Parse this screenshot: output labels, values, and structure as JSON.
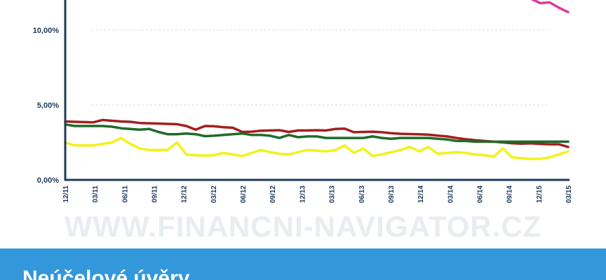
{
  "watermark": "WWW.FINANCNI-NAVIGATOR.CZ",
  "banner_title": "Neúčelové úvěry",
  "colors": {
    "axis": "#1f3a5a",
    "grid": "#d9dde2",
    "banner": "#3397db",
    "magenta": "#e0379b",
    "red": "#a51e1e",
    "green": "#1e6b2a",
    "yellow": "#f2f21a"
  },
  "chart_data": {
    "type": "line",
    "title": "",
    "xlabel": "",
    "ylabel": "",
    "ylim": [
      0,
      12
    ],
    "y_ticks": [
      "0,00%",
      "5,00%",
      "10,00%"
    ],
    "y_tick_values": [
      0,
      5,
      10
    ],
    "grid": true,
    "x_tick_labels": [
      "12/11",
      "03/11",
      "06/11",
      "09/11",
      "12/12",
      "03/12",
      "06/12",
      "09/12",
      "12/13",
      "03/13",
      "06/13",
      "09/13",
      "12/14",
      "03/14",
      "06/14",
      "09/14",
      "12/15",
      "03/15"
    ],
    "series": [
      {
        "color": "#e0379b",
        "values": [
          null,
          null,
          null,
          null,
          null,
          null,
          null,
          null,
          null,
          null,
          null,
          null,
          null,
          null,
          null,
          null,
          null,
          null,
          null,
          null,
          null,
          null,
          null,
          null,
          null,
          null,
          null,
          null,
          null,
          null,
          null,
          null,
          null,
          null,
          null,
          null,
          null,
          null,
          null,
          null,
          null,
          null,
          null,
          null,
          null,
          null,
          null,
          null,
          null,
          null,
          12.1,
          11.8,
          11.85,
          11.5,
          11.2
        ]
      },
      {
        "color": "#a51e1e",
        "values": [
          3.9,
          3.88,
          3.86,
          3.84,
          4.0,
          3.95,
          3.9,
          3.88,
          3.8,
          3.78,
          3.76,
          3.74,
          3.72,
          3.6,
          3.35,
          3.6,
          3.58,
          3.52,
          3.48,
          3.2,
          3.22,
          3.28,
          3.3,
          3.32,
          3.2,
          3.3,
          3.3,
          3.32,
          3.3,
          3.4,
          3.42,
          3.18,
          3.2,
          3.22,
          3.18,
          3.12,
          3.08,
          3.06,
          3.04,
          3.02,
          2.96,
          2.9,
          2.8,
          2.72,
          2.65,
          2.6,
          2.55,
          2.5,
          2.45,
          2.42,
          2.44,
          2.4,
          2.38,
          2.38,
          2.2
        ]
      },
      {
        "color": "#1e6b2a",
        "values": [
          3.7,
          3.6,
          3.6,
          3.6,
          3.6,
          3.55,
          3.45,
          3.4,
          3.35,
          3.4,
          3.2,
          3.05,
          3.05,
          3.1,
          3.05,
          2.92,
          2.95,
          3.0,
          3.05,
          3.1,
          3.0,
          3.0,
          2.95,
          2.8,
          3.0,
          2.85,
          2.9,
          2.9,
          2.8,
          2.8,
          2.8,
          2.8,
          2.8,
          2.9,
          2.8,
          2.75,
          2.8,
          2.8,
          2.8,
          2.8,
          2.75,
          2.7,
          2.6,
          2.6,
          2.55,
          2.55,
          2.55,
          2.55,
          2.55,
          2.55,
          2.55,
          2.55,
          2.55,
          2.55,
          2.55
        ]
      },
      {
        "color": "#f2f21a",
        "values": [
          2.5,
          2.3,
          2.3,
          2.3,
          2.4,
          2.5,
          2.8,
          2.4,
          2.1,
          2.0,
          2.0,
          2.0,
          2.5,
          1.7,
          1.65,
          1.62,
          1.65,
          1.8,
          1.7,
          1.6,
          1.8,
          2.0,
          1.85,
          1.75,
          1.7,
          1.85,
          2.0,
          1.95,
          1.9,
          2.0,
          2.3,
          1.8,
          2.1,
          1.6,
          1.7,
          1.85,
          2.0,
          2.2,
          1.9,
          2.2,
          1.75,
          1.8,
          1.85,
          1.8,
          1.7,
          1.65,
          1.55,
          2.1,
          1.5,
          1.45,
          1.4,
          1.4,
          1.5,
          1.7,
          1.9
        ]
      }
    ]
  }
}
